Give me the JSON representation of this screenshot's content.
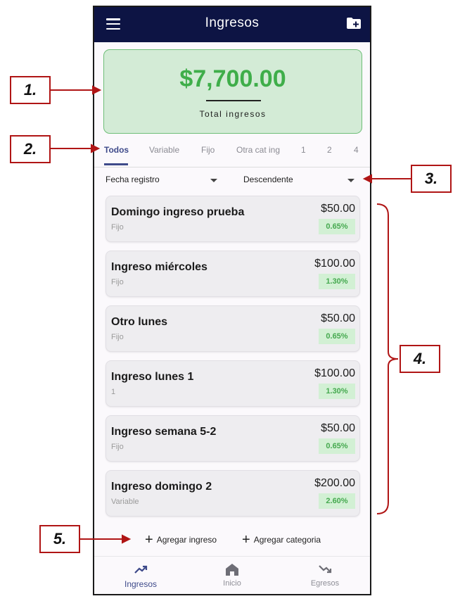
{
  "appbar": {
    "title": "Ingresos"
  },
  "summary": {
    "total": "$7,700.00",
    "label": "Total ingresos"
  },
  "tabs": [
    "Todos",
    "Variable",
    "Fijo",
    "Otra cat ing",
    "1",
    "2",
    "4"
  ],
  "active_tab": "Todos",
  "sort": {
    "field": "Fecha registro",
    "order": "Descendente"
  },
  "items": [
    {
      "name": "Domingo ingreso prueba",
      "category": "Fijo",
      "amount": "$50.00",
      "percent": "0.65%"
    },
    {
      "name": "Ingreso miércoles",
      "category": "Fijo",
      "amount": "$100.00",
      "percent": "1.30%"
    },
    {
      "name": "Otro lunes",
      "category": "Fijo",
      "amount": "$50.00",
      "percent": "0.65%"
    },
    {
      "name": "Ingreso lunes 1",
      "category": "1",
      "amount": "$100.00",
      "percent": "1.30%"
    },
    {
      "name": "Ingreso semana 5-2",
      "category": "Fijo",
      "amount": "$50.00",
      "percent": "0.65%"
    },
    {
      "name": "Ingreso domingo 2",
      "category": "Variable",
      "amount": "$200.00",
      "percent": "2.60%"
    }
  ],
  "actions": {
    "add_income": "Agregar ingreso",
    "add_category": "Agregar categoria"
  },
  "bottom_nav": [
    {
      "label": "Ingresos",
      "icon": "trending-up-icon",
      "active": true
    },
    {
      "label": "Inicio",
      "icon": "home-icon",
      "active": false
    },
    {
      "label": "Egresos",
      "icon": "trending-down-icon",
      "active": false
    }
  ],
  "callouts": [
    "1.",
    "2.",
    "3.",
    "4.",
    "5."
  ],
  "colors": {
    "appbar": "#0d1444",
    "accent": "#3e4a8a",
    "total_green": "#3fae4a",
    "summary_bg": "#d3ebd6",
    "callout_red": "#b01515"
  }
}
